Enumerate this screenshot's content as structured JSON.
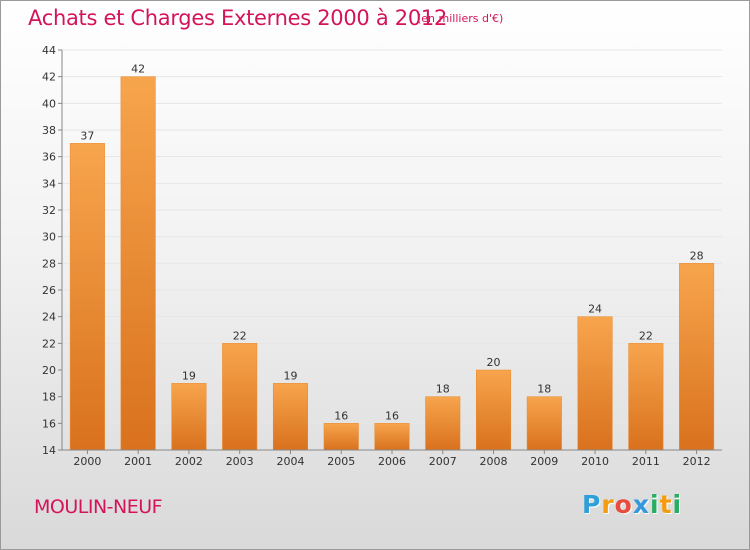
{
  "header": {
    "title": "Achats et Charges Externes 2000 à 2012",
    "subtitle": "(en milliers d'€)"
  },
  "footer": {
    "commune": "MOULIN-NEUF",
    "logo_letters": [
      "P",
      "r",
      "o",
      "x",
      "i",
      "t",
      "i"
    ],
    "logo_colors": [
      "#2e9fd8",
      "#f39c12",
      "#e74c3c",
      "#3498db",
      "#27ae60",
      "#f39c12",
      "#27ae60"
    ]
  },
  "chart_data": {
    "type": "bar",
    "title": "Achats et Charges Externes 2000 à 2012",
    "subtitle": "(en milliers d'€)",
    "categories": [
      "2000",
      "2001",
      "2002",
      "2003",
      "2004",
      "2005",
      "2006",
      "2007",
      "2008",
      "2009",
      "2010",
      "2011",
      "2012"
    ],
    "values": [
      37,
      42,
      19,
      22,
      19,
      16,
      16,
      18,
      20,
      18,
      24,
      22,
      28
    ],
    "ylim": [
      14,
      44
    ],
    "yticks": [
      14,
      16,
      18,
      20,
      22,
      24,
      26,
      28,
      30,
      32,
      34,
      36,
      38,
      40,
      42,
      44
    ],
    "grid": true,
    "bar_color_top": "#f7a54d",
    "bar_color_bottom": "#d9711e",
    "bar_edge_color": "#e88a2e",
    "grid_color": "#e6e6e6",
    "axis_color": "#888888"
  }
}
